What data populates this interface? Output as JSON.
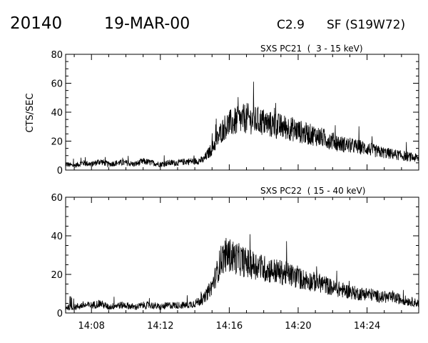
{
  "header": {
    "event_number": "20140",
    "date": "19-MAR-00",
    "flare_class": "C2.9",
    "location": "SF (S19W72)"
  },
  "colors": {
    "ink": "#000000",
    "background": "#ffffff"
  },
  "chart_data": [
    {
      "type": "line",
      "title": "SXS PC21  (  3 - 15 keV)",
      "ylabel": "CTS/SEC",
      "xlabel": "",
      "x_ticks": [
        "14:08",
        "14:12",
        "14:16",
        "14:20",
        "14:24"
      ],
      "y_ticks": [
        "0",
        "20",
        "40",
        "60",
        "80"
      ],
      "xlim": [
        "14:06:30",
        "14:27:00"
      ],
      "ylim": [
        0,
        80
      ],
      "grid": false,
      "series": [
        {
          "x": [
            "14:06:30",
            "14:07:00",
            "14:07:30",
            "14:08:00",
            "14:08:30",
            "14:09:00",
            "14:09:30",
            "14:10:00",
            "14:10:30",
            "14:11:00",
            "14:11:30",
            "14:12:00",
            "14:12:30",
            "14:13:00",
            "14:13:30",
            "14:14:00",
            "14:14:30",
            "14:15:00",
            "14:15:15",
            "14:15:30",
            "14:15:45",
            "14:16:00",
            "14:16:15",
            "14:16:30",
            "14:16:45",
            "14:17:00",
            "14:17:15",
            "14:17:30",
            "14:17:45",
            "14:18:00",
            "14:18:30",
            "14:19:00",
            "14:19:30",
            "14:20:00",
            "14:20:30",
            "14:21:00",
            "14:21:30",
            "14:22:00",
            "14:22:30",
            "14:23:00",
            "14:23:30",
            "14:24:00",
            "14:24:30",
            "14:25:00",
            "14:25:30",
            "14:26:00",
            "14:26:30",
            "14:27:00"
          ],
          "values": [
            4,
            3,
            5,
            4,
            6,
            4,
            5,
            5,
            4,
            6,
            5,
            4,
            5,
            5,
            6,
            6,
            7,
            15,
            20,
            26,
            30,
            32,
            33,
            34,
            35,
            36,
            35,
            34,
            34,
            33,
            31,
            30,
            29,
            27,
            25,
            24,
            22,
            20,
            18,
            17,
            16,
            15,
            13,
            12,
            11,
            10,
            9,
            8
          ]
        }
      ]
    },
    {
      "type": "line",
      "title": "SXS PC22  ( 15 - 40 keV)",
      "ylabel": "",
      "xlabel": "",
      "x_ticks": [
        "14:08",
        "14:12",
        "14:16",
        "14:20",
        "14:24"
      ],
      "y_ticks": [
        "0",
        "20",
        "40",
        "60"
      ],
      "xlim": [
        "14:06:30",
        "14:27:00"
      ],
      "ylim": [
        0,
        60
      ],
      "grid": false,
      "series": [
        {
          "x": [
            "14:06:30",
            "14:07:00",
            "14:07:30",
            "14:08:00",
            "14:08:30",
            "14:09:00",
            "14:09:30",
            "14:10:00",
            "14:10:30",
            "14:11:00",
            "14:11:30",
            "14:12:00",
            "14:12:30",
            "14:13:00",
            "14:13:30",
            "14:14:00",
            "14:14:30",
            "14:15:00",
            "14:15:15",
            "14:15:30",
            "14:15:45",
            "14:16:00",
            "14:16:15",
            "14:16:30",
            "14:16:45",
            "14:17:00",
            "14:17:15",
            "14:17:30",
            "14:17:45",
            "14:18:00",
            "14:18:30",
            "14:19:00",
            "14:19:30",
            "14:20:00",
            "14:20:30",
            "14:21:00",
            "14:21:30",
            "14:22:00",
            "14:22:30",
            "14:23:00",
            "14:23:30",
            "14:24:00",
            "14:24:30",
            "14:25:00",
            "14:25:30",
            "14:26:00",
            "14:26:30",
            "14:27:00"
          ],
          "values": [
            3,
            3,
            4,
            4,
            5,
            3,
            4,
            4,
            3,
            4,
            4,
            3,
            4,
            4,
            4,
            5,
            7,
            14,
            20,
            27,
            30,
            30,
            29,
            28,
            27,
            26,
            25,
            25,
            24,
            23,
            22,
            21,
            20,
            18,
            17,
            16,
            15,
            13,
            12,
            11,
            10,
            10,
            9,
            8,
            8,
            7,
            6,
            5
          ]
        }
      ]
    }
  ]
}
